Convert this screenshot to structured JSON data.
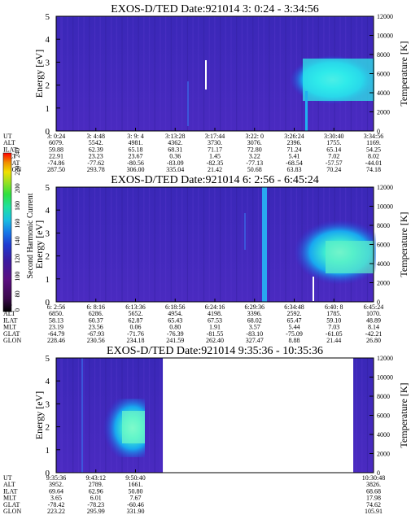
{
  "colorbar": {
    "label": "Second Harmonic Current",
    "ticks": [
      0,
      80,
      100,
      120,
      140,
      160,
      180,
      200,
      220,
      240
    ],
    "colors": [
      "#000000",
      "#3a0a4a",
      "#5b1080",
      "#3c1aa0",
      "#1f3ad0",
      "#1778e8",
      "#18c0e0",
      "#20e0a0",
      "#30e040",
      "#a0e020",
      "#f0e000",
      "#f09000",
      "#e03000",
      "#ff0000"
    ]
  },
  "panels": [
    {
      "title": "EXOS-D/TED   Date:921014  3: 0:24 - 3:34:56",
      "ylabel": "Energy [eV]",
      "ylabel_right": "Temperature [K]",
      "yticks": [
        "0",
        "1",
        "2",
        "3",
        "4",
        "5"
      ],
      "yticks_right": [
        "0",
        "2000",
        "4000",
        "6000",
        "8000",
        "10000",
        "12000"
      ],
      "data_gaps": [],
      "row_labels": [
        "UT",
        "ALT",
        "ILAT",
        "MLT",
        "GLAT",
        "GLON"
      ],
      "columns": [
        [
          "3: 0:24",
          "6079.",
          "59.88",
          "22.91",
          "-74.86",
          "287.50"
        ],
        [
          "3: 4:48",
          "5542.",
          "62.39",
          "23.23",
          "-77.62",
          "293.78"
        ],
        [
          "3: 9: 4",
          "4981.",
          "65.18",
          "23.67",
          "-80.56",
          "306.00"
        ],
        [
          "3:13:28",
          "4362.",
          "68.31",
          "0.36",
          "-83.09",
          "335.04"
        ],
        [
          "3:17:44",
          "3730.",
          "71.17",
          "1.45",
          "-82.35",
          "21.42"
        ],
        [
          "3:22: 0",
          "3076.",
          "72.80",
          "3.22",
          "-77.13",
          "50.68"
        ],
        [
          "3:26:24",
          "2396.",
          "71.24",
          "5.41",
          "-68.54",
          "63.83"
        ],
        [
          "3:30:40",
          "1755.",
          "65.14",
          "7.02",
          "-57.57",
          "70.24"
        ],
        [
          "3:34:56",
          "1169.",
          "54.25",
          "8.02",
          "-44.01",
          "74.18"
        ]
      ]
    },
    {
      "title": "EXOS-D/TED   Date:921014  6: 2:56 - 6:45:24",
      "ylabel": "Energy [eV]",
      "ylabel_right": "Temperature [K]",
      "yticks": [
        "0",
        "1",
        "2",
        "3",
        "4",
        "5"
      ],
      "yticks_right": [
        "0",
        "2000",
        "4000",
        "6000",
        "8000",
        "10000",
        "12000"
      ],
      "data_gaps": [],
      "row_labels": [
        "UT",
        "ALT",
        "ILAT",
        "MLT",
        "GLAT",
        "GLON"
      ],
      "columns": [
        [
          "6: 2:56",
          "6850.",
          "58.13",
          "23.19",
          "-64.79",
          "228.46"
        ],
        [
          "6: 8:16",
          "6286.",
          "60.37",
          "23.56",
          "-67.93",
          "230.56"
        ],
        [
          "6:13:36",
          "5652.",
          "62.87",
          "0.06",
          "-71.76",
          "234.18"
        ],
        [
          "6:18:56",
          "4954.",
          "65.43",
          "0.80",
          "-76.39",
          "241.59"
        ],
        [
          "6:24:16",
          "4198.",
          "67.53",
          "1.91",
          "-81.55",
          "262.40"
        ],
        [
          "6:29:36",
          "3396.",
          "68.02",
          "3.57",
          "-83.10",
          "327.47"
        ],
        [
          "6:34:48",
          "2592.",
          "65.47",
          "5.44",
          "-75.09",
          "8.88"
        ],
        [
          "6:40: 8",
          "1785.",
          "59.10",
          "7.03",
          "-61.05",
          "21.44"
        ],
        [
          "6:45:24",
          "1070.",
          "48.89",
          "8.14",
          "-42.21",
          "26.80"
        ]
      ]
    },
    {
      "title": "EXOS-D/TED   Date:921014  9:35:36 - 10:35:36",
      "ylabel": "Energy [eV]",
      "ylabel_right": "Temperature [K]",
      "yticks": [
        "0",
        "1",
        "2",
        "3",
        "4",
        "5"
      ],
      "yticks_right": [
        "0",
        "2000",
        "4000",
        "6000",
        "8000",
        "10000",
        "12000"
      ],
      "data_gaps": [
        [
          0.336,
          0.936
        ]
      ],
      "row_labels": [
        "UT",
        "ALT",
        "ILAT",
        "MLT",
        "GLAT",
        "GLON"
      ],
      "columns": [
        [
          "9:35:36",
          "3952.",
          "69.64",
          "3.65",
          "-78.42",
          "223.22"
        ],
        [
          "9:43:12",
          "2789.",
          "62.96",
          "6.01",
          "-78.23",
          "295.99"
        ],
        [
          "9:50:40",
          "1661.",
          "50.80",
          "7.67",
          "-60.46",
          "331.90"
        ],
        [
          "",
          "",
          "",
          "",
          "",
          ""
        ],
        [
          "",
          "",
          "",
          "",
          "",
          ""
        ],
        [
          "",
          "",
          "",
          "",
          "",
          ""
        ],
        [
          "",
          "",
          "",
          "",
          "",
          ""
        ],
        [
          "",
          "",
          "",
          "",
          "",
          ""
        ],
        [
          "10:30:48",
          "3826.",
          "68.68",
          "17.98",
          "74.62",
          "105.91"
        ]
      ]
    }
  ]
}
